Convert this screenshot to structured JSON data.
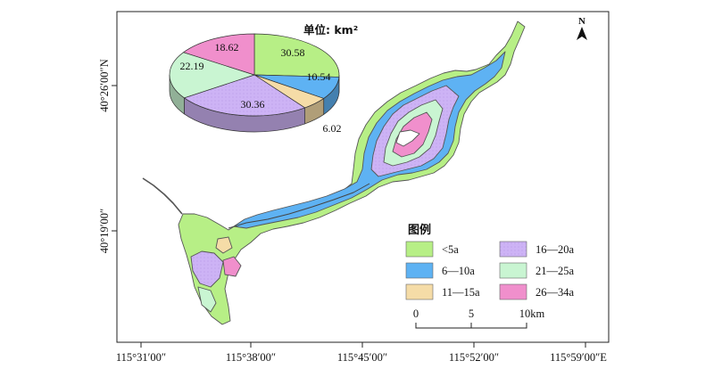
{
  "map": {
    "north_label": "N",
    "x_ticks": [
      "115°31′00″",
      "115°38′00″",
      "115°45′00″",
      "115°52′00″",
      "115°59′00″E"
    ],
    "y_ticks": [
      "40°26′00″N",
      "40°19′00″"
    ]
  },
  "pie": {
    "unit_label": "单位: km²",
    "slices": [
      {
        "label": "30.58",
        "value": 30.58,
        "color": "#b7ef86",
        "legend": "<5a"
      },
      {
        "label": "10.54",
        "value": 10.54,
        "color": "#5eb2f3",
        "legend": "6—10a"
      },
      {
        "label": "6.02",
        "value": 6.02,
        "color": "#f5dca7",
        "legend": "11—15a"
      },
      {
        "label": "30.36",
        "value": 30.36,
        "color": "#cdb3f5",
        "legend": "16—20a"
      },
      {
        "label": "22.19",
        "value": 22.19,
        "color": "#c9f5d2",
        "legend": "21—25a"
      },
      {
        "label": "18.62",
        "value": 18.62,
        "color": "#f08fcc",
        "legend": "26—34a"
      }
    ]
  },
  "legend": {
    "title": "图例",
    "items": [
      {
        "label": "<5a",
        "color": "#b7ef86"
      },
      {
        "label": "16—20a",
        "color": "#cdb3f5"
      },
      {
        "label": "6—10a",
        "color": "#5eb2f3"
      },
      {
        "label": "21—25a",
        "color": "#c9f5d2"
      },
      {
        "label": "11—15a",
        "color": "#f5dca7"
      },
      {
        "label": "26—34a",
        "color": "#f08fcc"
      }
    ]
  },
  "scale_bar": {
    "labels": [
      "0",
      "5",
      "10km"
    ]
  }
}
